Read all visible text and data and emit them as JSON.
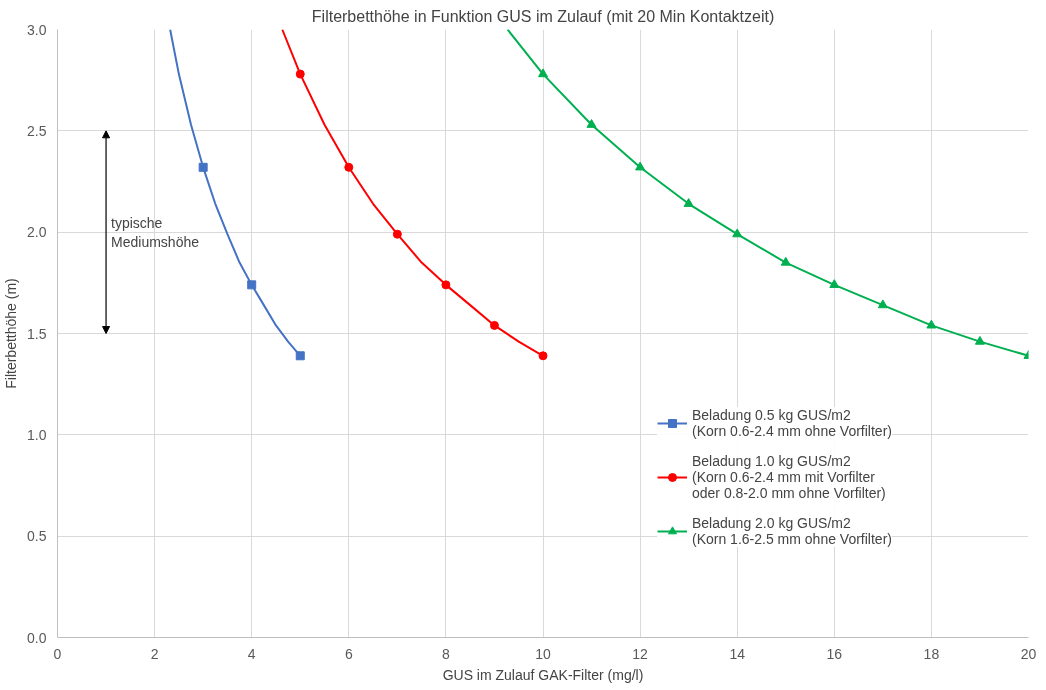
{
  "chart_data": {
    "type": "line",
    "title": "Filterbetthöhe in Funktion GUS im Zulauf (mit 20 Min Kontaktzeit)",
    "xlabel": "GUS im Zulauf GAK-Filter (mg/l)",
    "ylabel": "Filterbetthöhe (m)",
    "xlim": [
      0,
      20
    ],
    "xticks": [
      0,
      2,
      4,
      6,
      8,
      10,
      12,
      14,
      16,
      18,
      20
    ],
    "ylim": [
      0,
      3
    ],
    "yticks": [
      {
        "value": 0,
        "label": "0.0"
      },
      {
        "value": 0.5,
        "label": "0.5"
      },
      {
        "value": 1,
        "label": "1.0"
      },
      {
        "value": 1.5,
        "label": "1.5"
      },
      {
        "value": 2,
        "label": "2.0"
      },
      {
        "value": 2.5,
        "label": "2.5"
      },
      {
        "value": 3,
        "label": "3.0"
      }
    ],
    "grid": true,
    "legend": "bottom right",
    "line_style": "solid",
    "annotations": [
      "typische Mediumshöhe"
    ],
    "series": [
      {
        "marker": "none",
        "color": "#4472c4",
        "x": [
          2.32,
          2.5,
          2.75,
          3,
          3.25,
          3.5,
          3.75,
          4,
          4.25,
          4.5,
          4.75,
          5
        ],
        "values": [
          3.0,
          2.78,
          2.53,
          2.32,
          2.14,
          1.99,
          1.85,
          1.74,
          1.64,
          1.54,
          1.46,
          1.39
        ]
      },
      {
        "type": "scatter",
        "marker": "square",
        "name": "Beladung 0.5 kg GUS/m2\n(Korn 0.6-2.4 mm ohne Vorfilter)",
        "color": "#4472c4",
        "x": [
          3,
          4,
          5
        ],
        "values": [
          2.32,
          1.74,
          1.39
        ]
      },
      {
        "marker": "none",
        "color": "#ff0000",
        "x": [
          4.63,
          5,
          5.5,
          6,
          6.5,
          7,
          7.5,
          8,
          8.5,
          9,
          9.5,
          10
        ],
        "values": [
          3.0,
          2.78,
          2.53,
          2.32,
          2.14,
          1.99,
          1.85,
          1.74,
          1.64,
          1.54,
          1.46,
          1.39
        ]
      },
      {
        "type": "scatter",
        "marker": "circle",
        "name": "Beladung 1.0 kg GUS/m2\n(Korn 0.6-2.4 mm mit Vorfilter\noder 0.8-2.0 mm ohne Vorfilter)",
        "color": "#ff0000",
        "x": [
          5,
          6,
          7,
          8,
          9,
          10
        ],
        "values": [
          2.78,
          2.32,
          1.99,
          1.74,
          1.54,
          1.39
        ]
      },
      {
        "marker": "none",
        "color": "#00b050",
        "x": [
          9.27,
          10,
          11,
          12,
          13,
          14,
          15,
          16,
          17,
          18,
          19,
          20
        ],
        "values": [
          3.0,
          2.78,
          2.53,
          2.32,
          2.14,
          1.99,
          1.85,
          1.74,
          1.64,
          1.54,
          1.46,
          1.39
        ]
      },
      {
        "type": "scatter",
        "marker": "triangle",
        "name": "Beladung 2.0 kg GUS/m2\n(Korn 1.6-2.5 mm ohne Vorfilter)",
        "color": "#00b050",
        "x": [
          10,
          11,
          12,
          13,
          14,
          15,
          16,
          17,
          18,
          19,
          20
        ],
        "values": [
          2.78,
          2.53,
          2.32,
          2.14,
          1.99,
          1.85,
          1.74,
          1.64,
          1.54,
          1.46,
          1.39
        ]
      }
    ]
  }
}
